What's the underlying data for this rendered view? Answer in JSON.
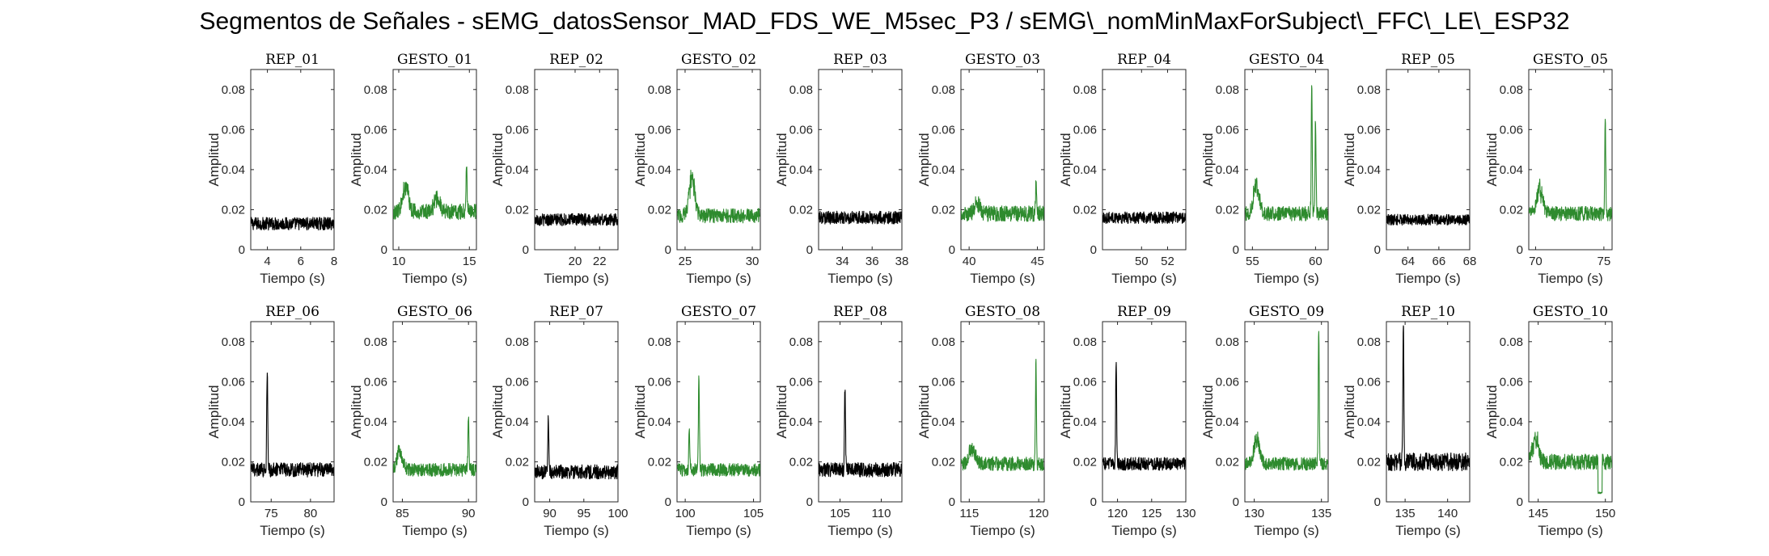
{
  "figure": {
    "title": "Segmentos de Señales - sEMG_datosSensor_MAD_FDS_WE_M5sec_P3 / sEMG\\_nomMinMaxForSubject\\_FFC\\_LE\\_ESP32"
  },
  "colors": {
    "rep": "#000000",
    "gesto": "#2e8b2e",
    "axis": "#262626"
  },
  "chart_data": [
    {
      "type": "line",
      "title": "REP_01",
      "xlabel": "Tiempo (s)",
      "ylabel": "Amplitud",
      "xlim": [
        3,
        8
      ],
      "ylim": [
        0,
        0.09
      ],
      "xticks": [
        4,
        6,
        8
      ],
      "xtick_labels": [
        "4",
        "6",
        "8"
      ],
      "yticks": [
        0,
        0.02,
        0.04,
        0.06,
        0.08
      ],
      "ytick_labels": [
        "0",
        "0.02",
        "0.04",
        "0.06",
        "0.08"
      ],
      "series": [
        {
          "name": "REP_01",
          "color": "#000000",
          "baseline": 0.013,
          "noise": 0.0018,
          "features": []
        }
      ]
    },
    {
      "type": "line",
      "title": "GESTO_01",
      "xlabel": "Tiempo (s)",
      "ylabel": "Amplitud",
      "xlim": [
        9.6,
        15.5
      ],
      "ylim": [
        0,
        0.09
      ],
      "xticks": [
        10,
        15
      ],
      "xtick_labels": [
        "10",
        "15"
      ],
      "yticks": [
        0,
        0.02,
        0.04,
        0.06,
        0.08
      ],
      "ytick_labels": [
        "0",
        "0.02",
        "0.04",
        "0.06",
        "0.08"
      ],
      "series": [
        {
          "name": "GESTO_01",
          "color": "#2e8b2e",
          "baseline": 0.019,
          "noise": 0.0022,
          "features": [
            {
              "x": 10.5,
              "y": 0.035,
              "kind": "burst"
            },
            {
              "x": 12.7,
              "y": 0.027,
              "kind": "burst"
            },
            {
              "x": 14.8,
              "y": 0.045,
              "kind": "spike"
            }
          ]
        }
      ]
    },
    {
      "type": "line",
      "title": "REP_02",
      "xlabel": "Tiempo (s)",
      "ylabel": "Amplitud",
      "xlim": [
        16.7,
        23.5
      ],
      "ylim": [
        0,
        0.09
      ],
      "xticks": [
        20,
        22
      ],
      "xtick_labels": [
        "20",
        "22"
      ],
      "yticks": [
        0,
        0.02,
        0.04,
        0.06,
        0.08
      ],
      "ytick_labels": [
        "0",
        "0.02",
        "0.04",
        "0.06",
        "0.08"
      ],
      "series": [
        {
          "name": "REP_02",
          "color": "#000000",
          "baseline": 0.015,
          "noise": 0.0017,
          "features": []
        }
      ]
    },
    {
      "type": "line",
      "title": "GESTO_02",
      "xlabel": "Tiempo (s)",
      "ylabel": "Amplitud",
      "xlim": [
        24.4,
        30.6
      ],
      "ylim": [
        0,
        0.09
      ],
      "xticks": [
        25,
        30
      ],
      "xtick_labels": [
        "25",
        "30"
      ],
      "yticks": [
        0,
        0.02,
        0.04,
        0.06,
        0.08
      ],
      "ytick_labels": [
        "0",
        "0.02",
        "0.04",
        "0.06",
        "0.08"
      ],
      "series": [
        {
          "name": "GESTO_02",
          "color": "#2e8b2e",
          "baseline": 0.017,
          "noise": 0.002,
          "features": [
            {
              "x": 25.5,
              "y": 0.04,
              "kind": "burst"
            }
          ]
        }
      ]
    },
    {
      "type": "line",
      "title": "REP_03",
      "xlabel": "Tiempo (s)",
      "ylabel": "Amplitud",
      "xlim": [
        32.4,
        38
      ],
      "ylim": [
        0,
        0.09
      ],
      "xticks": [
        34,
        36,
        38
      ],
      "xtick_labels": [
        "34",
        "36",
        "38"
      ],
      "yticks": [
        0,
        0.02,
        0.04,
        0.06,
        0.08
      ],
      "ytick_labels": [
        "0",
        "0.02",
        "0.04",
        "0.06",
        "0.08"
      ],
      "series": [
        {
          "name": "REP_03",
          "color": "#000000",
          "baseline": 0.016,
          "noise": 0.0018,
          "features": []
        }
      ]
    },
    {
      "type": "line",
      "title": "GESTO_03",
      "xlabel": "Tiempo (s)",
      "ylabel": "Amplitud",
      "xlim": [
        39.4,
        45.5
      ],
      "ylim": [
        0,
        0.09
      ],
      "xticks": [
        40,
        45
      ],
      "xtick_labels": [
        "40",
        "45"
      ],
      "yticks": [
        0,
        0.02,
        0.04,
        0.06,
        0.08
      ],
      "ytick_labels": [
        "0",
        "0.02",
        "0.04",
        "0.06",
        "0.08"
      ],
      "series": [
        {
          "name": "GESTO_03",
          "color": "#2e8b2e",
          "baseline": 0.018,
          "noise": 0.0022,
          "features": [
            {
              "x": 40.6,
              "y": 0.024,
              "kind": "burst"
            },
            {
              "x": 44.9,
              "y": 0.033,
              "kind": "spike"
            }
          ]
        }
      ]
    },
    {
      "type": "line",
      "title": "REP_04",
      "xlabel": "Tiempo (s)",
      "ylabel": "Amplitud",
      "xlim": [
        47,
        53.4
      ],
      "ylim": [
        0,
        0.09
      ],
      "xticks": [
        50,
        52
      ],
      "xtick_labels": [
        "50",
        "52"
      ],
      "yticks": [
        0,
        0.02,
        0.04,
        0.06,
        0.08
      ],
      "ytick_labels": [
        "0",
        "0.02",
        "0.04",
        "0.06",
        "0.08"
      ],
      "series": [
        {
          "name": "REP_04",
          "color": "#000000",
          "baseline": 0.016,
          "noise": 0.0016,
          "features": []
        }
      ]
    },
    {
      "type": "line",
      "title": "GESTO_04",
      "xlabel": "Tiempo (s)",
      "ylabel": "Amplitud",
      "xlim": [
        54.4,
        61
      ],
      "ylim": [
        0,
        0.09
      ],
      "xticks": [
        55,
        60
      ],
      "xtick_labels": [
        "55",
        "60"
      ],
      "yticks": [
        0,
        0.02,
        0.04,
        0.06,
        0.08
      ],
      "ytick_labels": [
        "0",
        "0.02",
        "0.04",
        "0.06",
        "0.08"
      ],
      "series": [
        {
          "name": "GESTO_04",
          "color": "#2e8b2e",
          "baseline": 0.018,
          "noise": 0.002,
          "features": [
            {
              "x": 55.3,
              "y": 0.035,
              "kind": "burst"
            },
            {
              "x": 59.7,
              "y": 0.082,
              "kind": "spike"
            },
            {
              "x": 60,
              "y": 0.066,
              "kind": "spike"
            }
          ]
        }
      ]
    },
    {
      "type": "line",
      "title": "REP_05",
      "xlabel": "Tiempo (s)",
      "ylabel": "Amplitud",
      "xlim": [
        62.6,
        68
      ],
      "ylim": [
        0,
        0.09
      ],
      "xticks": [
        64,
        66,
        68
      ],
      "xtick_labels": [
        "64",
        "66",
        "68"
      ],
      "yticks": [
        0,
        0.02,
        0.04,
        0.06,
        0.08
      ],
      "ytick_labels": [
        "0",
        "0.02",
        "0.04",
        "0.06",
        "0.08"
      ],
      "series": [
        {
          "name": "REP_05",
          "color": "#000000",
          "baseline": 0.015,
          "noise": 0.0015,
          "features": []
        }
      ]
    },
    {
      "type": "line",
      "title": "GESTO_05",
      "xlabel": "Tiempo (s)",
      "ylabel": "Amplitud",
      "xlim": [
        69.5,
        75.6
      ],
      "ylim": [
        0,
        0.09
      ],
      "xticks": [
        70,
        75
      ],
      "xtick_labels": [
        "70",
        "75"
      ],
      "yticks": [
        0,
        0.02,
        0.04,
        0.06,
        0.08
      ],
      "ytick_labels": [
        "0",
        "0.02",
        "0.04",
        "0.06",
        "0.08"
      ],
      "series": [
        {
          "name": "GESTO_05",
          "color": "#2e8b2e",
          "baseline": 0.018,
          "noise": 0.002,
          "features": [
            {
              "x": 70.3,
              "y": 0.033,
              "kind": "burst"
            },
            {
              "x": 75.1,
              "y": 0.067,
              "kind": "spike"
            }
          ]
        }
      ]
    },
    {
      "type": "line",
      "title": "REP_06",
      "xlabel": "Tiempo (s)",
      "ylabel": "Amplitud",
      "xlim": [
        72.4,
        83
      ],
      "ylim": [
        0,
        0.09
      ],
      "xticks": [
        75,
        80
      ],
      "xtick_labels": [
        "75",
        "80"
      ],
      "yticks": [
        0,
        0.02,
        0.04,
        0.06,
        0.08
      ],
      "ytick_labels": [
        "0",
        "0.02",
        "0.04",
        "0.06",
        "0.08"
      ],
      "series": [
        {
          "name": "REP_06",
          "color": "#000000",
          "baseline": 0.016,
          "noise": 0.002,
          "features": [
            {
              "x": 74.5,
              "y": 0.067,
              "kind": "spike"
            }
          ]
        }
      ]
    },
    {
      "type": "line",
      "title": "GESTO_06",
      "xlabel": "Tiempo (s)",
      "ylabel": "Amplitud",
      "xlim": [
        84.3,
        90.6
      ],
      "ylim": [
        0,
        0.09
      ],
      "xticks": [
        85,
        90
      ],
      "xtick_labels": [
        "85",
        "90"
      ],
      "yticks": [
        0,
        0.02,
        0.04,
        0.06,
        0.08
      ],
      "ytick_labels": [
        "0",
        "0.02",
        "0.04",
        "0.06",
        "0.08"
      ],
      "series": [
        {
          "name": "GESTO_06",
          "color": "#2e8b2e",
          "baseline": 0.016,
          "noise": 0.0018,
          "features": [
            {
              "x": 84.8,
              "y": 0.027,
              "kind": "burst"
            },
            {
              "x": 90,
              "y": 0.043,
              "kind": "spike"
            }
          ]
        }
      ]
    },
    {
      "type": "line",
      "title": "REP_07",
      "xlabel": "Tiempo (s)",
      "ylabel": "Amplitud",
      "xlim": [
        87.8,
        100
      ],
      "ylim": [
        0,
        0.09
      ],
      "xticks": [
        90,
        95,
        100
      ],
      "xtick_labels": [
        "90",
        "95",
        "100"
      ],
      "yticks": [
        0,
        0.02,
        0.04,
        0.06,
        0.08
      ],
      "ytick_labels": [
        "0",
        "0.02",
        "0.04",
        "0.06",
        "0.08"
      ],
      "series": [
        {
          "name": "REP_07",
          "color": "#000000",
          "baseline": 0.015,
          "noise": 0.002,
          "features": [
            {
              "x": 89.8,
              "y": 0.043,
              "kind": "spike"
            }
          ]
        }
      ]
    },
    {
      "type": "line",
      "title": "GESTO_07",
      "xlabel": "Tiempo (s)",
      "ylabel": "Amplitud",
      "xlim": [
        99.4,
        105.5
      ],
      "ylim": [
        0,
        0.09
      ],
      "xticks": [
        100,
        105
      ],
      "xtick_labels": [
        "100",
        "105"
      ],
      "yticks": [
        0,
        0.02,
        0.04,
        0.06,
        0.08
      ],
      "ytick_labels": [
        "0",
        "0.02",
        "0.04",
        "0.06",
        "0.08"
      ],
      "series": [
        {
          "name": "GESTO_07",
          "color": "#2e8b2e",
          "baseline": 0.016,
          "noise": 0.0018,
          "features": [
            {
              "x": 100.3,
              "y": 0.036,
              "kind": "spike"
            },
            {
              "x": 101,
              "y": 0.062,
              "kind": "spike"
            }
          ]
        }
      ]
    },
    {
      "type": "line",
      "title": "REP_08",
      "xlabel": "Tiempo (s)",
      "ylabel": "Amplitud",
      "xlim": [
        102.4,
        112.5
      ],
      "ylim": [
        0,
        0.09
      ],
      "xticks": [
        105,
        110
      ],
      "xtick_labels": [
        "105",
        "110"
      ],
      "yticks": [
        0,
        0.02,
        0.04,
        0.06,
        0.08
      ],
      "ytick_labels": [
        "0",
        "0.02",
        "0.04",
        "0.06",
        "0.08"
      ],
      "series": [
        {
          "name": "REP_08",
          "color": "#000000",
          "baseline": 0.016,
          "noise": 0.002,
          "features": [
            {
              "x": 105.6,
              "y": 0.058,
              "kind": "spike"
            }
          ]
        }
      ]
    },
    {
      "type": "line",
      "title": "GESTO_08",
      "xlabel": "Tiempo (s)",
      "ylabel": "Amplitud",
      "xlim": [
        114.4,
        120.4
      ],
      "ylim": [
        0,
        0.09
      ],
      "xticks": [
        115,
        120
      ],
      "xtick_labels": [
        "115",
        "120"
      ],
      "yticks": [
        0,
        0.02,
        0.04,
        0.06,
        0.08
      ],
      "ytick_labels": [
        "0",
        "0.02",
        "0.04",
        "0.06",
        "0.08"
      ],
      "series": [
        {
          "name": "GESTO_08",
          "color": "#2e8b2e",
          "baseline": 0.019,
          "noise": 0.002,
          "features": [
            {
              "x": 115.2,
              "y": 0.029,
              "kind": "burst"
            },
            {
              "x": 119.8,
              "y": 0.071,
              "kind": "spike"
            }
          ]
        }
      ]
    },
    {
      "type": "line",
      "title": "REP_09",
      "xlabel": "Tiempo (s)",
      "ylabel": "Amplitud",
      "xlim": [
        117.8,
        130
      ],
      "ylim": [
        0,
        0.09
      ],
      "xticks": [
        120,
        125,
        130
      ],
      "xtick_labels": [
        "120",
        "125",
        "130"
      ],
      "yticks": [
        0,
        0.02,
        0.04,
        0.06,
        0.08
      ],
      "ytick_labels": [
        "0",
        "0.02",
        "0.04",
        "0.06",
        "0.08"
      ],
      "series": [
        {
          "name": "REP_09",
          "color": "#000000",
          "baseline": 0.019,
          "noise": 0.0018,
          "features": [
            {
              "x": 119.8,
              "y": 0.071,
              "kind": "spike"
            }
          ]
        }
      ]
    },
    {
      "type": "line",
      "title": "GESTO_09",
      "xlabel": "Tiempo (s)",
      "ylabel": "Amplitud",
      "xlim": [
        129.3,
        135.5
      ],
      "ylim": [
        0,
        0.09
      ],
      "xticks": [
        130,
        135
      ],
      "xtick_labels": [
        "130",
        "135"
      ],
      "yticks": [
        0,
        0.02,
        0.04,
        0.06,
        0.08
      ],
      "ytick_labels": [
        "0",
        "0.02",
        "0.04",
        "0.06",
        "0.08"
      ],
      "series": [
        {
          "name": "GESTO_09",
          "color": "#2e8b2e",
          "baseline": 0.019,
          "noise": 0.0018,
          "features": [
            {
              "x": 130.2,
              "y": 0.034,
              "kind": "burst"
            },
            {
              "x": 134.8,
              "y": 0.088,
              "kind": "spike"
            }
          ]
        }
      ]
    },
    {
      "type": "line",
      "title": "REP_10",
      "xlabel": "Tiempo (s)",
      "ylabel": "Amplitud",
      "xlim": [
        132.8,
        142.6
      ],
      "ylim": [
        0,
        0.09
      ],
      "xticks": [
        135,
        140
      ],
      "xtick_labels": [
        "135",
        "140"
      ],
      "yticks": [
        0,
        0.02,
        0.04,
        0.06,
        0.08
      ],
      "ytick_labels": [
        "0",
        "0.02",
        "0.04",
        "0.06",
        "0.08"
      ],
      "series": [
        {
          "name": "REP_10",
          "color": "#000000",
          "baseline": 0.02,
          "noise": 0.0025,
          "features": [
            {
              "x": 134.8,
              "y": 0.09,
              "kind": "spike"
            }
          ]
        }
      ]
    },
    {
      "type": "line",
      "title": "GESTO_10",
      "xlabel": "Tiempo (s)",
      "ylabel": "Amplitud",
      "xlim": [
        144.3,
        150.5
      ],
      "ylim": [
        0,
        0.09
      ],
      "xticks": [
        145,
        150
      ],
      "xtick_labels": [
        "145",
        "150"
      ],
      "yticks": [
        0,
        0.02,
        0.04,
        0.06,
        0.08
      ],
      "ytick_labels": [
        "0",
        "0.02",
        "0.04",
        "0.06",
        "0.08"
      ],
      "series": [
        {
          "name": "GESTO_10",
          "color": "#2e8b2e",
          "baseline": 0.02,
          "noise": 0.0022,
          "features": [
            {
              "x": 144.8,
              "y": 0.035,
              "kind": "burst"
            },
            {
              "x": 149.6,
              "y": 0.004,
              "kind": "dip"
            }
          ]
        }
      ]
    }
  ]
}
